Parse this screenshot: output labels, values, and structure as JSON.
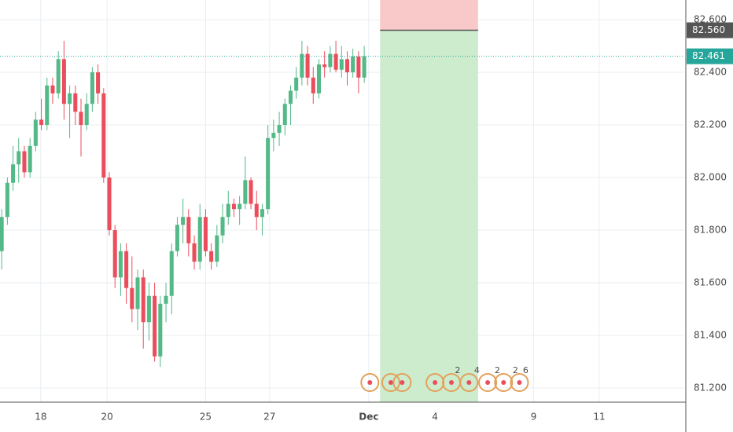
{
  "chart_data": {
    "type": "candlestick",
    "up_color": "#53b987",
    "down_color": "#eb4d5c",
    "grid": true,
    "open": [
      81.72,
      81.85,
      81.98,
      82.05,
      82.1,
      82.02,
      82.12,
      82.22,
      82.2,
      82.35,
      82.32,
      82.45,
      82.28,
      82.32,
      82.25,
      82.2,
      82.28,
      82.4,
      82.32,
      82.0,
      81.8,
      81.62,
      81.72,
      81.58,
      81.5,
      81.62,
      81.45,
      81.55,
      81.32,
      81.52,
      81.55,
      81.72,
      81.82,
      81.85,
      81.75,
      81.68,
      81.85,
      81.72,
      81.68,
      81.78,
      81.85,
      81.9,
      81.88,
      81.9,
      81.99,
      81.9,
      81.85,
      81.88,
      82.15,
      82.17,
      82.2,
      82.28,
      82.33,
      82.38,
      82.47,
      82.38,
      82.32,
      82.43,
      82.42,
      82.47,
      82.41,
      82.45,
      82.4,
      82.46,
      82.38
    ],
    "high": [
      81.88,
      82.0,
      82.12,
      82.15,
      82.12,
      82.15,
      82.25,
      82.3,
      82.38,
      82.38,
      82.48,
      82.52,
      82.35,
      82.35,
      82.3,
      82.32,
      82.42,
      82.43,
      82.34,
      82.02,
      81.82,
      81.75,
      81.75,
      81.7,
      81.65,
      81.65,
      81.6,
      81.6,
      81.55,
      81.6,
      81.75,
      81.85,
      81.92,
      81.88,
      81.78,
      81.9,
      81.88,
      81.75,
      81.82,
      81.9,
      81.95,
      81.92,
      81.93,
      82.08,
      82.0,
      81.95,
      81.9,
      82.2,
      82.22,
      82.25,
      82.3,
      82.35,
      82.42,
      82.52,
      82.5,
      82.42,
      82.45,
      82.48,
      82.5,
      82.52,
      82.5,
      82.48,
      82.49,
      82.48,
      82.5
    ],
    "low": [
      81.65,
      81.82,
      81.95,
      81.98,
      82.0,
      82.0,
      82.1,
      82.18,
      82.18,
      82.28,
      82.3,
      82.22,
      82.15,
      82.2,
      82.08,
      82.18,
      82.25,
      82.28,
      81.98,
      81.78,
      81.58,
      81.55,
      81.52,
      81.45,
      81.42,
      81.35,
      81.38,
      81.3,
      81.28,
      81.45,
      81.48,
      81.7,
      81.75,
      81.7,
      81.65,
      81.65,
      81.7,
      81.65,
      81.66,
      81.75,
      81.82,
      81.85,
      81.82,
      81.88,
      81.88,
      81.8,
      81.78,
      81.86,
      82.1,
      82.12,
      82.16,
      82.2,
      82.3,
      82.35,
      82.35,
      82.28,
      82.3,
      82.38,
      82.4,
      82.4,
      82.38,
      82.35,
      82.38,
      82.32,
      82.36
    ],
    "close": [
      81.85,
      81.98,
      82.05,
      82.1,
      82.02,
      82.12,
      82.22,
      82.2,
      82.35,
      82.32,
      82.45,
      82.28,
      82.32,
      82.25,
      82.2,
      82.28,
      82.4,
      82.32,
      82.0,
      81.8,
      81.62,
      81.72,
      81.58,
      81.5,
      81.62,
      81.45,
      81.55,
      81.32,
      81.52,
      81.55,
      81.72,
      81.82,
      81.85,
      81.75,
      81.68,
      81.85,
      81.72,
      81.68,
      81.78,
      81.85,
      81.9,
      81.88,
      81.9,
      81.99,
      81.9,
      81.85,
      81.88,
      82.15,
      82.17,
      82.2,
      82.28,
      82.33,
      82.38,
      82.47,
      82.38,
      82.32,
      82.43,
      82.42,
      82.47,
      82.41,
      82.45,
      82.4,
      82.46,
      82.38,
      82.461
    ],
    "xlim": [
      0,
      120.8
    ],
    "ylim": [
      81.146,
      82.675
    ],
    "xticks": [
      {
        "value": 7.2,
        "label": "18"
      },
      {
        "value": 18.9,
        "label": "20"
      },
      {
        "value": 36.3,
        "label": "25"
      },
      {
        "value": 47.6,
        "label": "27"
      },
      {
        "value": 65.1,
        "label": "Dec"
      },
      {
        "value": 76.8,
        "label": "4"
      },
      {
        "value": 94.2,
        "label": "9"
      },
      {
        "value": 105.8,
        "label": "11"
      }
    ],
    "yticks": [
      {
        "value": 81.2,
        "label": "81.200"
      },
      {
        "value": 81.4,
        "label": "81.400"
      },
      {
        "value": 81.6,
        "label": "81.600"
      },
      {
        "value": 81.8,
        "label": "81.800"
      },
      {
        "value": 82.0,
        "label": "82.000"
      },
      {
        "value": 82.2,
        "label": "82.200"
      },
      {
        "value": 82.4,
        "label": "82.400"
      },
      {
        "value": 82.6,
        "label": "82.600"
      }
    ],
    "position": {
      "start": 67.1,
      "end": 84.4,
      "stop": 82.675,
      "entry": {
        "value": 82.56,
        "label": "82.560"
      },
      "target": 81.146
    },
    "last_price": 82.461,
    "events": [
      65.3,
      69.0,
      71.0,
      76.8,
      79.7,
      82.8,
      86.1,
      88.9,
      91.7
    ],
    "event_counts": [
      {
        "x": 80.8,
        "label": "2"
      },
      {
        "x": 84.2,
        "label": "4"
      },
      {
        "x": 87.8,
        "label": "2"
      },
      {
        "x": 91.0,
        "label": "2"
      },
      {
        "x": 92.8,
        "label": "6"
      }
    ]
  }
}
